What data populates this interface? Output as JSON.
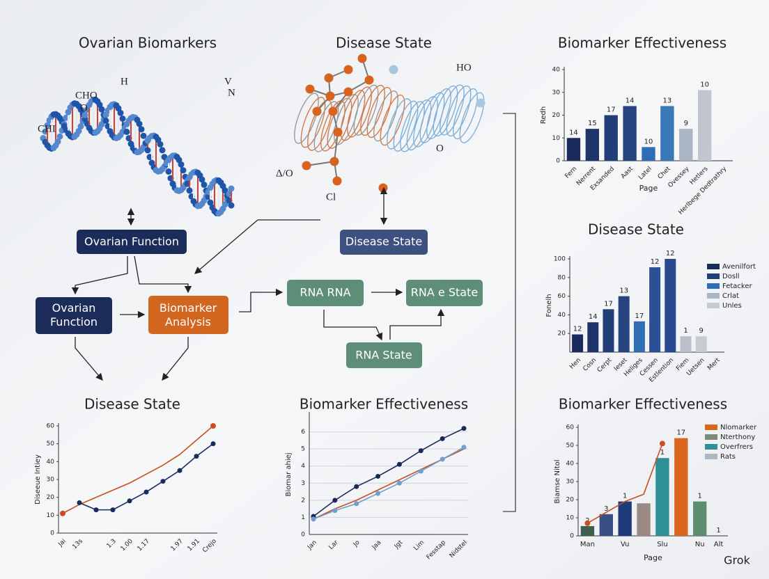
{
  "sections": [
    "Ovarian Biomarkers",
    "Disease State"
  ],
  "molecule_labels": [
    "CHO",
    "H",
    "V",
    "N",
    "CHI",
    "O",
    "HO",
    "O",
    "Δ/O",
    "Cl"
  ],
  "nodes": [
    {
      "label": "Ovarian Function"
    },
    {
      "label": "Disease State"
    },
    {
      "label": "Ovarian Function"
    },
    {
      "label": "Biomarker Analysis"
    },
    {
      "label": "RNA RNA"
    },
    {
      "label": "RNA e State"
    },
    {
      "label": "RNA State"
    }
  ],
  "watermark": "Grok",
  "chart_data": [
    {
      "type": "bar",
      "title": "Biomarker Effectiveness",
      "ylabel": "Redh",
      "xlabel": "Page",
      "categories": [
        "Fern",
        "Nerrent",
        "Exsanded",
        "Aast",
        "Latel",
        "Chet",
        "Ovessey",
        "Hetlers",
        "Herlbege Dedtrathry"
      ],
      "values": [
        10,
        14,
        20,
        24,
        6,
        24,
        14,
        31,
        null
      ],
      "bar_labels": [
        "14",
        "15",
        "17",
        "14",
        "10",
        "13",
        "9",
        "10",
        null
      ],
      "colors": [
        "#1b2a5c",
        "#1f3468",
        "#223d78",
        "#26457f",
        "#2f6db5",
        "#3a79b8",
        "#a9b4c4",
        "#c0c6d0",
        "#c0c6d0"
      ],
      "ylim": [
        0,
        40
      ],
      "yticks": [
        0,
        10,
        20,
        30,
        40
      ]
    },
    {
      "type": "bar",
      "title": "Disease State",
      "ylabel": "Fonelh",
      "categories": [
        "Hen",
        "Cosn",
        "Cerpt",
        "Ieset",
        "Heliges",
        "Cessen",
        "Estlention",
        "Fiem",
        "Uetsen",
        "Mert"
      ],
      "values": [
        19,
        32,
        46,
        60,
        33,
        91,
        100,
        17,
        17,
        null
      ],
      "bar_labels": [
        "12",
        "14",
        "17",
        "13",
        "17",
        "12",
        "12",
        "1",
        "9",
        null
      ],
      "colors": [
        "#1b2a5c",
        "#1f3468",
        "#223d78",
        "#26457f",
        "#2f6db5",
        "#2c4f95",
        "#2a4a8f",
        "#b9c0cb",
        "#c7ccd4",
        "#c7ccd4"
      ],
      "legend": [
        {
          "name": "Avenilfort",
          "color": "#1b2a5c"
        },
        {
          "name": "Dosll",
          "color": "#1f3f7a"
        },
        {
          "name": "Fetacker",
          "color": "#2f6db5"
        },
        {
          "name": "Crlat",
          "color": "#a9b4c4"
        },
        {
          "name": "Unles",
          "color": "#c7ccd4"
        }
      ],
      "ylim": [
        0,
        100
      ],
      "yticks": [
        20,
        40,
        60,
        80,
        100
      ]
    },
    {
      "type": "line",
      "title": "Disease State",
      "ylabel": "Diseeue Intiey",
      "categories": [
        "Jai",
        "13s",
        null,
        "1.3",
        "1.00",
        "1.17",
        null,
        "1.97",
        "1.91",
        "Crejo"
      ],
      "series": [
        {
          "color": "#c8501e",
          "marker": "ends",
          "values": [
            11,
            16,
            20,
            24,
            28,
            33,
            38,
            44,
            52,
            60
          ]
        },
        {
          "color": "#1b2a5c",
          "marker": "all",
          "values": [
            null,
            17,
            13,
            13,
            18,
            23,
            29,
            35,
            43,
            50
          ]
        }
      ],
      "ylim": [
        0,
        60
      ],
      "yticks": [
        0,
        10,
        20,
        30,
        40,
        50,
        60
      ]
    },
    {
      "type": "line",
      "title": "Biomarker Effectiveness",
      "ylabel": "Biomar ahiej",
      "categories": [
        "Jan",
        "Lar",
        "Jo",
        "Jaa",
        "Jgt",
        "Lim",
        "Fesstap",
        "Nidstel"
      ],
      "series": [
        {
          "color": "#c8501e",
          "marker": "none",
          "values": [
            0.9,
            1.5,
            2.0,
            2.6,
            3.2,
            3.8,
            4.4,
            5.0
          ]
        },
        {
          "color": "#1b2a5c",
          "marker": "all",
          "values": [
            1.06,
            2.0,
            2.8,
            3.4,
            4.1,
            4.9,
            5.6,
            6.2
          ]
        },
        {
          "color": "#6f9fd0",
          "marker": "all",
          "values": [
            0.9,
            1.4,
            1.8,
            2.4,
            3.0,
            3.7,
            4.4,
            5.1
          ]
        }
      ],
      "grid": true,
      "ylim": [
        0,
        7
      ],
      "yticks": [
        0,
        1,
        2,
        3,
        4,
        5,
        6
      ]
    },
    {
      "type": "bar",
      "title": "Biomarker Effectiveness",
      "ylabel": "Biamse Nitol",
      "xlabel": "Page",
      "categories": [
        "Man",
        null,
        "Vu",
        null,
        "Slu",
        null,
        "Nu",
        "Alt"
      ],
      "values": [
        5.4,
        12,
        19,
        18,
        43,
        54,
        19,
        null
      ],
      "bar_labels": [
        "2",
        "3",
        "1",
        null,
        "1",
        "17",
        "1",
        "1"
      ],
      "colors": [
        "#3e5e4e",
        "#3a4f86",
        "#1f3a7a",
        "#9a8a86",
        "#2f8f99",
        "#d9651e",
        "#5e8e70",
        "#5e8e70"
      ],
      "line_series": [
        {
          "color": "#c8501e",
          "values": [
            7,
            13,
            19,
            23,
            51,
            null,
            null,
            null
          ]
        }
      ],
      "legend": [
        {
          "name": "Nlomarker",
          "color": "#d9651e"
        },
        {
          "name": "Nterthony",
          "color": "#7d8a78"
        },
        {
          "name": "Overfrers",
          "color": "#2f8f99"
        },
        {
          "name": "Rats",
          "color": "#a9b8c4"
        }
      ],
      "ylim": [
        0,
        60
      ],
      "yticks": [
        0,
        10,
        20,
        30,
        40,
        50,
        60
      ]
    }
  ]
}
